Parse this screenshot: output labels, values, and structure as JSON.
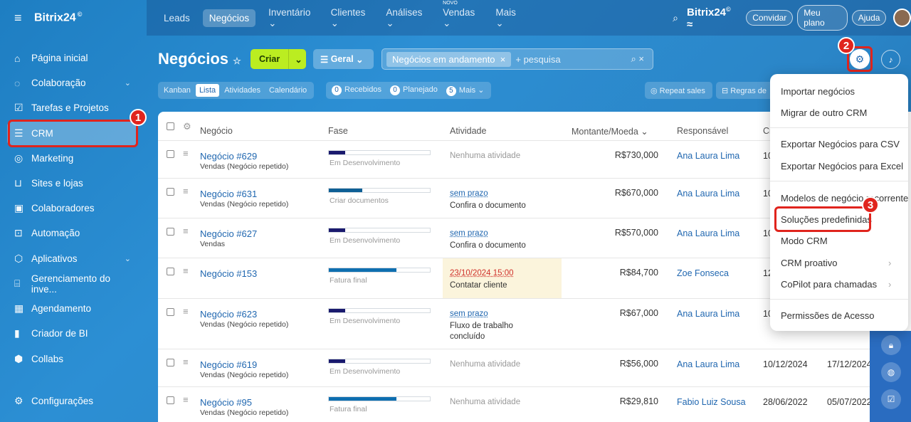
{
  "app": {
    "logo": "Bitrix24",
    "logo_mark": "©"
  },
  "sidebar": {
    "items": [
      {
        "label": "Página inicial"
      },
      {
        "label": "Colaboração"
      },
      {
        "label": "Tarefas e Projetos"
      },
      {
        "label": "CRM"
      },
      {
        "label": "Marketing"
      },
      {
        "label": "Sites e lojas"
      },
      {
        "label": "Colaboradores"
      },
      {
        "label": "Automação"
      },
      {
        "label": "Aplicativos"
      },
      {
        "label": "Gerenciamento do inve..."
      },
      {
        "label": "Agendamento"
      },
      {
        "label": "Criador de BI"
      },
      {
        "label": "Collabs"
      }
    ],
    "settings": "Configurações"
  },
  "topnav": {
    "items": [
      "Leads",
      "Negócios",
      "Inventário",
      "Clientes",
      "Análises",
      "Vendas",
      "Mais"
    ],
    "new_tag": "NOVO",
    "brand": "Bitrix24",
    "invite": "Convidar",
    "plan": "Meu plano",
    "help": "Ajuda"
  },
  "header": {
    "title": "Negócios",
    "create": "Criar",
    "general": "Geral",
    "filter_chip": "Negócios em andamento",
    "search_placeholder": "+ pesquisa"
  },
  "views": {
    "tabs": [
      "Kanban",
      "Lista",
      "Atividades",
      "Calendário"
    ],
    "counters": [
      {
        "n": "0",
        "label": "Recebidos"
      },
      {
        "n": "0",
        "label": "Planejado"
      },
      {
        "n": "5",
        "label": "Mais"
      }
    ],
    "repeat_sales": "Repeat sales",
    "rules": "Regras de"
  },
  "table": {
    "headers": {
      "deal": "Negócio",
      "phase": "Fase",
      "activity": "Atividade",
      "amount": "Montante/Moeda",
      "resp": "Responsável",
      "created": "Cr"
    },
    "rows": [
      {
        "deal": "Negócio #629",
        "sub": "Vendas (Negócio repetido)",
        "phase": "Em Desenvolvimento",
        "act1": "Nenhuma atividade",
        "act2": "",
        "amount": "R$730,000",
        "resp": "Ana Laura Lima",
        "d1": "10",
        "d2": ""
      },
      {
        "deal": "Negócio #631",
        "sub": "Vendas (Negócio repetido)",
        "phase": "Criar documentos",
        "act1": "sem prazo",
        "act2": "Confira o documento",
        "amount": "R$670,000",
        "resp": "Ana Laura Lima",
        "d1": "10",
        "d2": ""
      },
      {
        "deal": "Negócio #627",
        "sub": "Vendas",
        "phase": "Em Desenvolvimento",
        "act1": "sem prazo",
        "act2": "Confira o documento",
        "amount": "R$570,000",
        "resp": "Ana Laura Lima",
        "d1": "10",
        "d2": ""
      },
      {
        "deal": "Negócio #153",
        "sub": "",
        "phase": "Fatura final",
        "act1": "23/10/2024 15:00",
        "act2": "Contatar cliente",
        "amount": "R$84,700",
        "resp": "Zoe Fonseca",
        "d1": "12",
        "d2": ""
      },
      {
        "deal": "Negócio #623",
        "sub": "Vendas (Negócio repetido)",
        "phase": "Em Desenvolvimento",
        "act1": "sem prazo",
        "act2": "Fluxo de trabalho",
        "act3": "concluído",
        "amount": "R$67,000",
        "resp": "Ana Laura Lima",
        "d1": "10",
        "d2": ""
      },
      {
        "deal": "Negócio #619",
        "sub": "Vendas (Negócio repetido)",
        "phase": "Em Desenvolvimento",
        "act1": "Nenhuma atividade",
        "act2": "",
        "amount": "R$56,000",
        "resp": "Ana Laura Lima",
        "d1": "10/12/2024",
        "d2": "17/12/2024"
      },
      {
        "deal": "Negócio #95",
        "sub": "Vendas (Negócio repetido)",
        "phase": "Fatura final",
        "act1": "Nenhuma atividade",
        "act2": "",
        "amount": "R$29,810",
        "resp": "Fabio Luiz Sousa",
        "d1": "28/06/2022",
        "d2": "05/07/2022"
      }
    ]
  },
  "menu": {
    "items": [
      "Importar negócios",
      "Migrar de outro CRM",
      "Exportar Negócios para CSV",
      "Exportar Negócios para Excel",
      "Modelos de negócio recorrente",
      "Soluções predefinidas",
      "Modo CRM",
      "CRM proativo",
      "CoPilot para chamadas",
      "Permissões de Acesso"
    ]
  },
  "callouts": [
    "1",
    "2",
    "3"
  ],
  "colors": {
    "accent": "#2067b0",
    "highlight": "#e0241d",
    "create": "#bbed21"
  }
}
